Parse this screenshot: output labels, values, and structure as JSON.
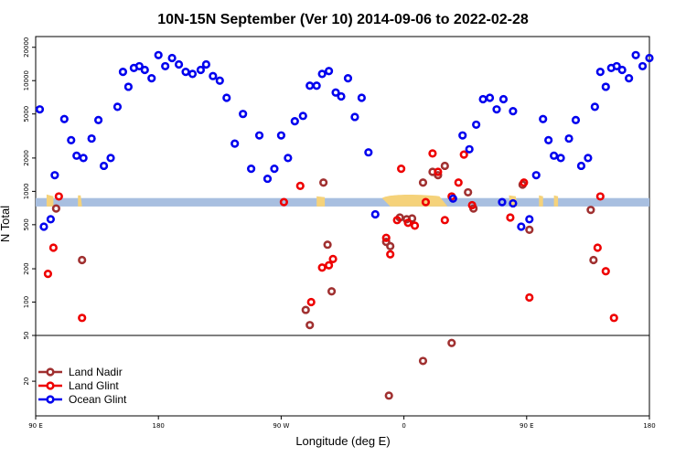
{
  "chart_data": {
    "type": "scatter",
    "title": "10N-15N September (Ver 10)   2014-09-06 to 2022-02-28",
    "xlabel": "Longitude (deg E)",
    "ylabel": "N Total",
    "x_scale": "continuous longitude (90E through 180 to 180E)",
    "y_scale": "log",
    "xlim": [
      90,
      540
    ],
    "ylim_upper": [
      50,
      25000
    ],
    "ylim_lower": [
      10,
      50
    ],
    "x_ticks": [
      {
        "value": 90,
        "label": "90 E"
      },
      {
        "value": 180,
        "label": "180"
      },
      {
        "value": 270,
        "label": "90 W"
      },
      {
        "value": 360,
        "label": "0"
      },
      {
        "value": 450,
        "label": "90 E"
      },
      {
        "value": 540,
        "label": "180"
      }
    ],
    "y_ticks_upper": [
      {
        "value": 100,
        "label": "100"
      },
      {
        "value": 200,
        "label": "200"
      },
      {
        "value": 500,
        "label": "500"
      },
      {
        "value": 1000,
        "label": "1000"
      },
      {
        "value": 2000,
        "label": "2000"
      },
      {
        "value": 5000,
        "label": "5000"
      },
      {
        "value": 10000,
        "label": "10000"
      },
      {
        "value": 20000,
        "label": "20000"
      }
    ],
    "y_ticks_lower": [
      {
        "value": 20,
        "label": "20"
      },
      {
        "value": 50,
        "label": "50"
      }
    ],
    "band": {
      "y_min": 730,
      "y_max": 870,
      "color": "#a8bfe0"
    },
    "legend_position": "bottom-left",
    "series": [
      {
        "name": "Land Nadir",
        "color": "#a03030",
        "points": [
          [
            105,
            700
          ],
          [
            124,
            240
          ],
          [
            288,
            85
          ],
          [
            291,
            62
          ],
          [
            301,
            1200
          ],
          [
            304,
            330
          ],
          [
            307,
            125
          ],
          [
            347,
            350
          ],
          [
            350,
            320
          ],
          [
            357,
            580
          ],
          [
            362,
            560
          ],
          [
            366,
            570
          ],
          [
            374,
            1200
          ],
          [
            381,
            1500
          ],
          [
            385,
            1400
          ],
          [
            390,
            1700
          ],
          [
            395,
            43
          ],
          [
            407,
            980
          ],
          [
            411,
            700
          ],
          [
            447,
            1150
          ],
          [
            452,
            450
          ],
          [
            497,
            680
          ],
          [
            499,
            240
          ],
          [
            374,
            30
          ],
          [
            349,
            15
          ]
        ]
      },
      {
        "name": "Land Glint",
        "color": "#ee0000",
        "points": [
          [
            99,
            180
          ],
          [
            103,
            310
          ],
          [
            107,
            900
          ],
          [
            124,
            72
          ],
          [
            272,
            800
          ],
          [
            284,
            1120
          ],
          [
            292,
            100
          ],
          [
            300,
            205
          ],
          [
            305,
            215
          ],
          [
            308,
            245
          ],
          [
            347,
            380
          ],
          [
            350,
            270
          ],
          [
            355,
            550
          ],
          [
            358,
            1600
          ],
          [
            363,
            520
          ],
          [
            368,
            490
          ],
          [
            376,
            800
          ],
          [
            381,
            2200
          ],
          [
            385,
            1500
          ],
          [
            390,
            550
          ],
          [
            395,
            900
          ],
          [
            400,
            1200
          ],
          [
            404,
            2150
          ],
          [
            410,
            750
          ],
          [
            438,
            580
          ],
          [
            448,
            1200
          ],
          [
            452,
            110
          ],
          [
            502,
            310
          ],
          [
            504,
            900
          ],
          [
            508,
            190
          ],
          [
            514,
            72
          ]
        ]
      },
      {
        "name": "Ocean Glint",
        "color": "#0000ee",
        "points": [
          [
            93,
            5500
          ],
          [
            96,
            480
          ],
          [
            101,
            560
          ],
          [
            104,
            1400
          ],
          [
            111,
            4500
          ],
          [
            116,
            2900
          ],
          [
            120,
            2100
          ],
          [
            125,
            2000
          ],
          [
            131,
            3000
          ],
          [
            136,
            4400
          ],
          [
            140,
            1700
          ],
          [
            145,
            2000
          ],
          [
            150,
            5800
          ],
          [
            154,
            12000
          ],
          [
            158,
            8800
          ],
          [
            162,
            13000
          ],
          [
            166,
            13500
          ],
          [
            170,
            12500
          ],
          [
            175,
            10500
          ],
          [
            180,
            17000
          ],
          [
            185,
            13500
          ],
          [
            190,
            16000
          ],
          [
            195,
            14000
          ],
          [
            200,
            12000
          ],
          [
            205,
            11500
          ],
          [
            211,
            12500
          ],
          [
            215,
            14000
          ],
          [
            220,
            11000
          ],
          [
            225,
            10000
          ],
          [
            230,
            7000
          ],
          [
            236,
            2700
          ],
          [
            242,
            5000
          ],
          [
            248,
            1600
          ],
          [
            254,
            3200
          ],
          [
            260,
            1300
          ],
          [
            265,
            1600
          ],
          [
            270,
            3200
          ],
          [
            275,
            2000
          ],
          [
            280,
            4300
          ],
          [
            286,
            4800
          ],
          [
            291,
            9000
          ],
          [
            296,
            9000
          ],
          [
            300,
            11500
          ],
          [
            305,
            12200
          ],
          [
            310,
            7800
          ],
          [
            314,
            7200
          ],
          [
            319,
            10500
          ],
          [
            324,
            4700
          ],
          [
            329,
            7000
          ],
          [
            334,
            2250
          ],
          [
            339,
            620
          ],
          [
            403,
            3200
          ],
          [
            408,
            2400
          ],
          [
            413,
            4000
          ],
          [
            418,
            6800
          ],
          [
            423,
            7000
          ],
          [
            428,
            5500
          ],
          [
            433,
            6800
          ],
          [
            440,
            5300
          ],
          [
            446,
            480
          ],
          [
            452,
            560
          ],
          [
            457,
            1400
          ],
          [
            462,
            4500
          ],
          [
            466,
            2900
          ],
          [
            470,
            2100
          ],
          [
            475,
            2000
          ],
          [
            481,
            3000
          ],
          [
            486,
            4400
          ],
          [
            490,
            1700
          ],
          [
            495,
            2000
          ],
          [
            500,
            5800
          ],
          [
            504,
            12000
          ],
          [
            508,
            8800
          ],
          [
            512,
            13000
          ],
          [
            516,
            13500
          ],
          [
            520,
            12500
          ],
          [
            525,
            10500
          ],
          [
            530,
            17000
          ],
          [
            535,
            13500
          ],
          [
            540,
            16000
          ],
          [
            396,
            860
          ],
          [
            432,
            800
          ],
          [
            440,
            780
          ]
        ]
      }
    ]
  }
}
